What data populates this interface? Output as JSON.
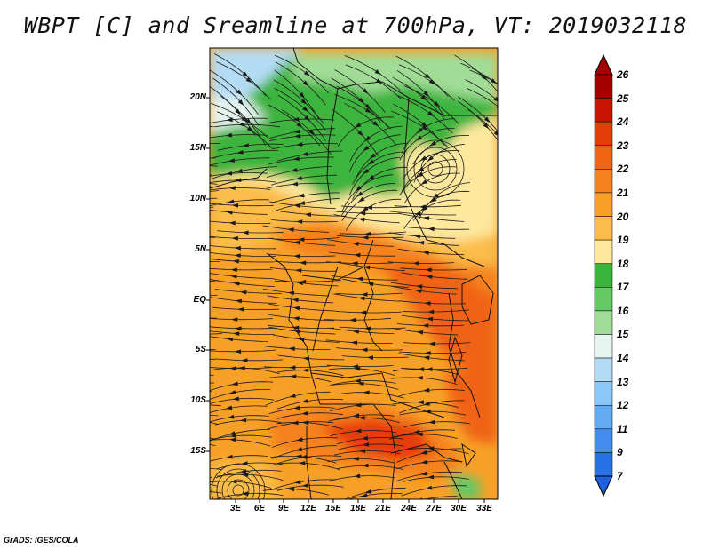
{
  "title": "WBPT [C] and Sreamline at 700hPa, VT: 2019032118",
  "credit": "GrADS: IGES/COLA",
  "lat_labels": [
    "20N",
    "15N",
    "10N",
    "5N",
    "EQ",
    "5S",
    "10S",
    "15S"
  ],
  "lon_labels": [
    "3E",
    "6E",
    "9E",
    "12E",
    "15E",
    "18E",
    "21E",
    "24E",
    "27E",
    "30E",
    "33E"
  ],
  "colorbar": {
    "labels": [
      "26",
      "25",
      "24",
      "23",
      "22",
      "21",
      "20",
      "19",
      "18",
      "17",
      "16",
      "15",
      "14",
      "13",
      "12",
      "11",
      "9",
      "7"
    ],
    "colors": [
      "#a50000",
      "#c81400",
      "#e63c0a",
      "#f06414",
      "#f5821e",
      "#f7a028",
      "#fbbc4a",
      "#fde89e",
      "#3cb43c",
      "#64c864",
      "#a0dc96",
      "#e6f5f0",
      "#b4dcf5",
      "#8cc8f5",
      "#64aaf0",
      "#468cf0",
      "#2870e6"
    ]
  },
  "map_colors": {
    "green_dark": "#3cb43c",
    "green_mid": "#64c864",
    "green_light": "#a0dc96",
    "pale_yellow": "#fde89e",
    "light_orange": "#fbbc4a",
    "orange": "#f7a028",
    "dark_orange": "#f5821e",
    "red_orange": "#f06414",
    "red": "#e63c0a",
    "light_blue": "#b4dcf5",
    "pale_blue": "#e6f5f0"
  }
}
